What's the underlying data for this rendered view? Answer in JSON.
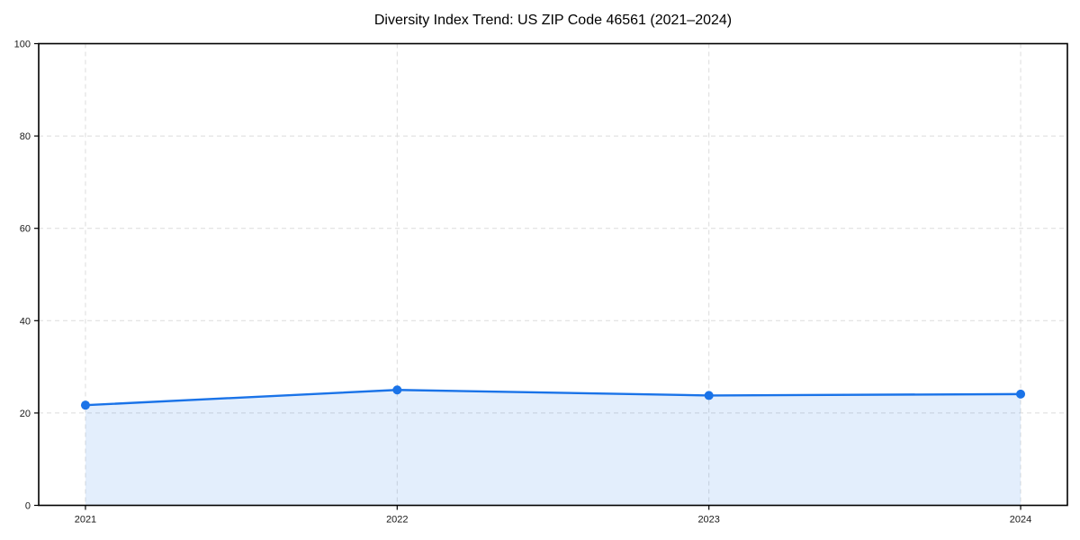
{
  "page": {
    "background": "#ffffff"
  },
  "chart_data": {
    "type": "area",
    "title": "Diversity Index Trend: US ZIP Code 46561 (2021–2024)",
    "x": [
      2021,
      2022,
      2023,
      2024
    ],
    "series": [
      {
        "name": "Diversity Index",
        "values": [
          21.7,
          25.0,
          23.8,
          24.1
        ]
      }
    ],
    "xlabel": "",
    "ylabel": "",
    "xlim": [
      2020.85,
      2024.15
    ],
    "ylim": [
      0,
      100
    ],
    "xticks": [
      2021,
      2022,
      2023,
      2024
    ],
    "xtick_labels": [
      "2021",
      "2022",
      "2023",
      "2024"
    ],
    "yticks": [
      0,
      20,
      40,
      60,
      80,
      100
    ],
    "ytick_labels": [
      "0",
      "20",
      "40",
      "60",
      "80",
      "100"
    ],
    "grid": true,
    "grid_style": "dashed",
    "legend_position": "none",
    "colors": {
      "line": "#1a73e8",
      "marker": "#1a73e8",
      "fill": "#1a73e8",
      "fill_opacity": 0.12,
      "grid": "#dcdcdc",
      "spine": "#000000",
      "tick": "#000000",
      "tick_label": "#1a1a1a",
      "title": "#000000",
      "background": "#ffffff"
    }
  }
}
